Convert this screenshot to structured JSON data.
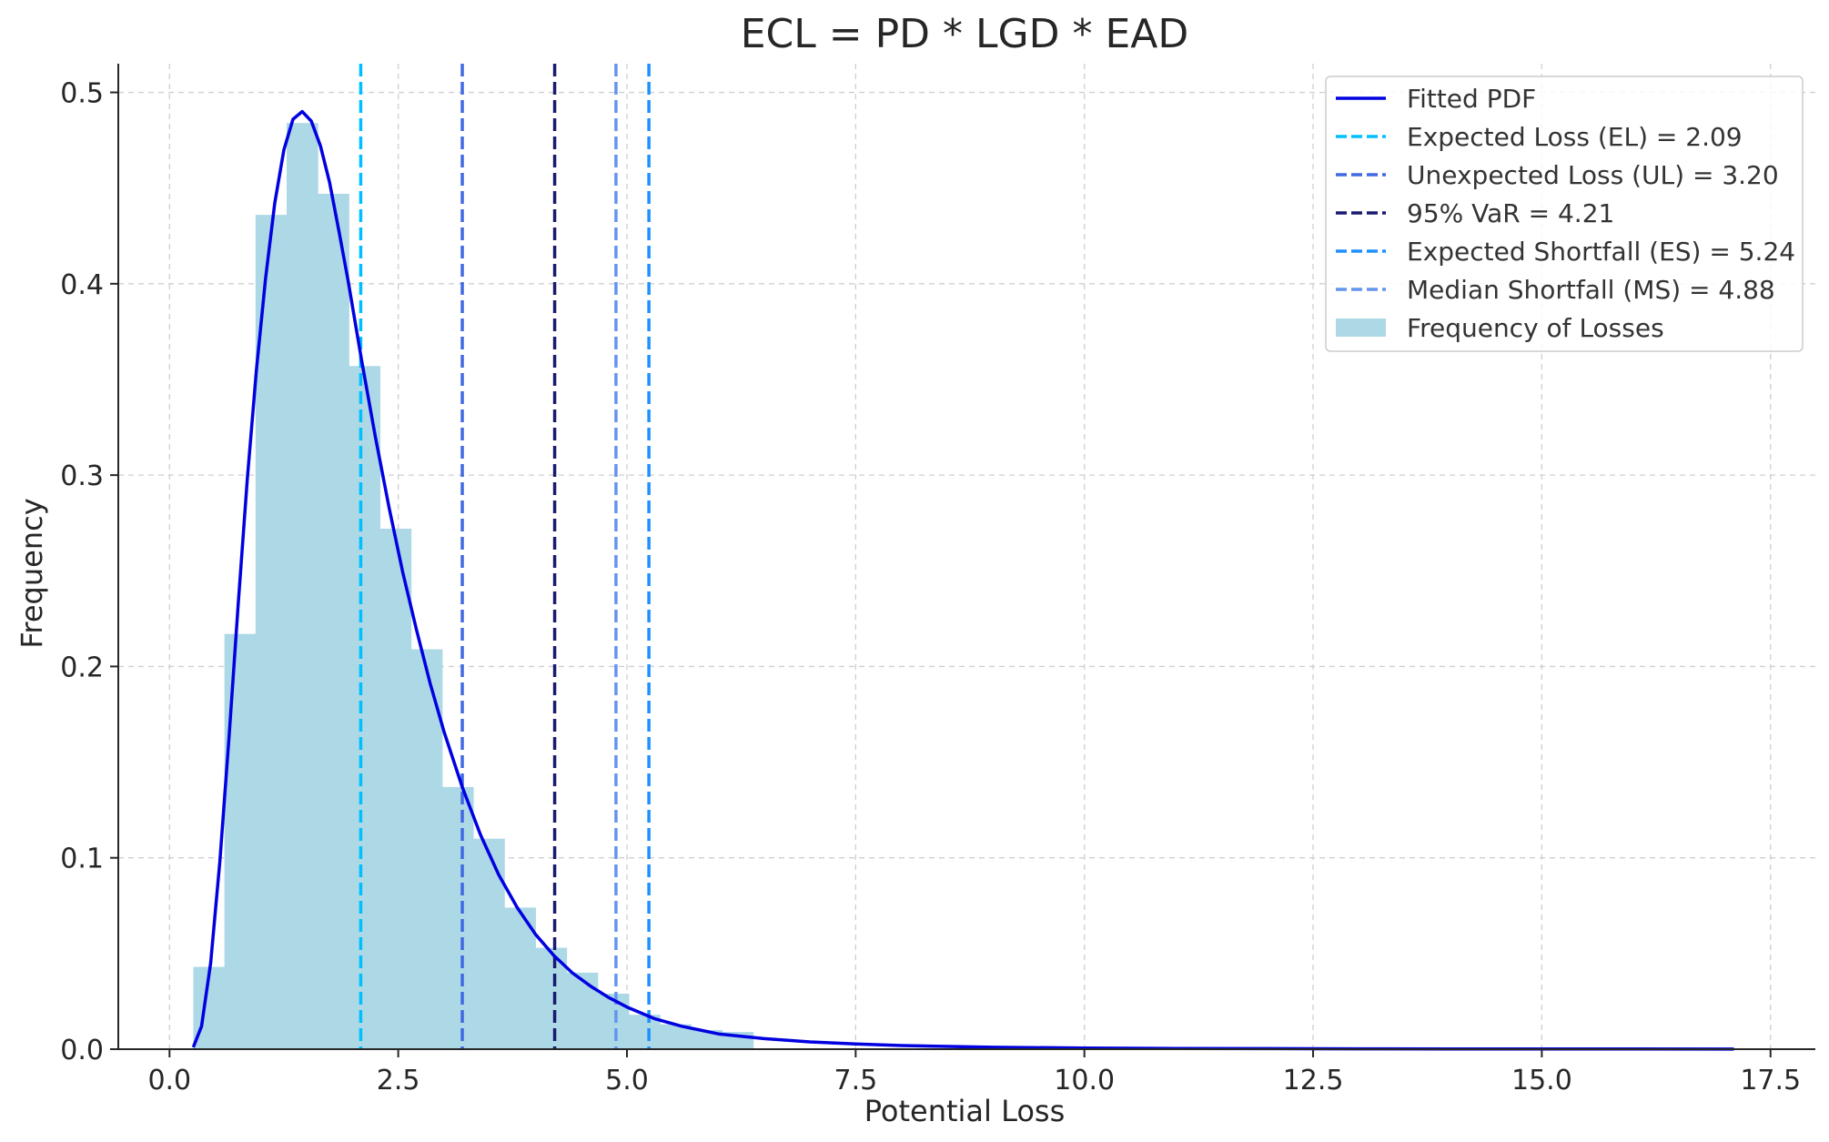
{
  "chart_data": {
    "type": "bar",
    "title": "ECL = PD * LGD * EAD",
    "xlabel": "Potential Loss",
    "ylabel": "Frequency",
    "xlim": [
      -0.56,
      17.99
    ],
    "ylim": [
      0,
      0.515
    ],
    "grid": true,
    "legend_position": "top-right",
    "xticks": [
      0.0,
      2.5,
      5.0,
      7.5,
      10.0,
      12.5,
      15.0,
      17.5
    ],
    "xtick_labels": [
      "0.0",
      "2.5",
      "5.0",
      "7.5",
      "10.0",
      "12.5",
      "15.0",
      "17.5"
    ],
    "yticks": [
      0.0,
      0.1,
      0.2,
      0.3,
      0.4,
      0.5
    ],
    "ytick_labels": [
      "0.0",
      "0.1",
      "0.2",
      "0.3",
      "0.4",
      "0.5"
    ],
    "histogram": {
      "name": "Frequency of Losses",
      "color": "#add8e6",
      "bin_edges": [
        0.26,
        0.6,
        0.94,
        1.28,
        1.62,
        1.96,
        2.3,
        2.64,
        2.98,
        3.32,
        3.66,
        4.0,
        4.34,
        4.68,
        5.02,
        5.36,
        5.7,
        6.04,
        6.38
      ],
      "values": [
        0.043,
        0.217,
        0.436,
        0.484,
        0.447,
        0.357,
        0.272,
        0.209,
        0.137,
        0.11,
        0.074,
        0.053,
        0.04,
        0.029,
        0.018,
        0.013,
        0.01,
        0.009
      ]
    },
    "fitted_pdf": {
      "name": "Fitted PDF",
      "color": "#0000e0",
      "x": [
        0.26,
        0.35,
        0.45,
        0.55,
        0.65,
        0.75,
        0.85,
        0.95,
        1.05,
        1.15,
        1.25,
        1.35,
        1.45,
        1.55,
        1.65,
        1.75,
        1.85,
        1.95,
        2.1,
        2.25,
        2.4,
        2.55,
        2.7,
        2.85,
        3.0,
        3.2,
        3.4,
        3.6,
        3.8,
        4.0,
        4.2,
        4.4,
        4.6,
        4.8,
        5.0,
        5.3,
        5.6,
        6.0,
        6.5,
        7.0,
        7.5,
        8.0,
        9.0,
        10.0,
        11.0,
        12.0,
        13.0,
        14.0,
        15.0,
        16.0,
        17.1
      ],
      "y": [
        0.001,
        0.012,
        0.045,
        0.098,
        0.163,
        0.232,
        0.298,
        0.355,
        0.403,
        0.442,
        0.47,
        0.486,
        0.49,
        0.485,
        0.472,
        0.453,
        0.428,
        0.402,
        0.36,
        0.32,
        0.283,
        0.249,
        0.219,
        0.191,
        0.166,
        0.137,
        0.112,
        0.091,
        0.074,
        0.06,
        0.049,
        0.04,
        0.033,
        0.027,
        0.022,
        0.016,
        0.012,
        0.008,
        0.0055,
        0.0038,
        0.0027,
        0.0019,
        0.001,
        0.0006,
        0.0004,
        0.0003,
        0.0002,
        0.00015,
        0.0001,
        8e-05,
        5e-05
      ]
    },
    "vlines": [
      {
        "name": "Expected Loss (EL) = 2.09",
        "x": 2.09,
        "color": "#00bfff"
      },
      {
        "name": "Unexpected Loss (UL) = 3.20",
        "x": 3.2,
        "color": "#4169e1"
      },
      {
        "name": "95% VaR = 4.21",
        "x": 4.21,
        "color": "#191970"
      },
      {
        "name": "Expected Shortfall (ES) = 5.24",
        "x": 5.24,
        "color": "#1e90ff"
      },
      {
        "name": "Median Shortfall (MS) = 4.88",
        "x": 4.88,
        "color": "#6495ed"
      }
    ]
  }
}
